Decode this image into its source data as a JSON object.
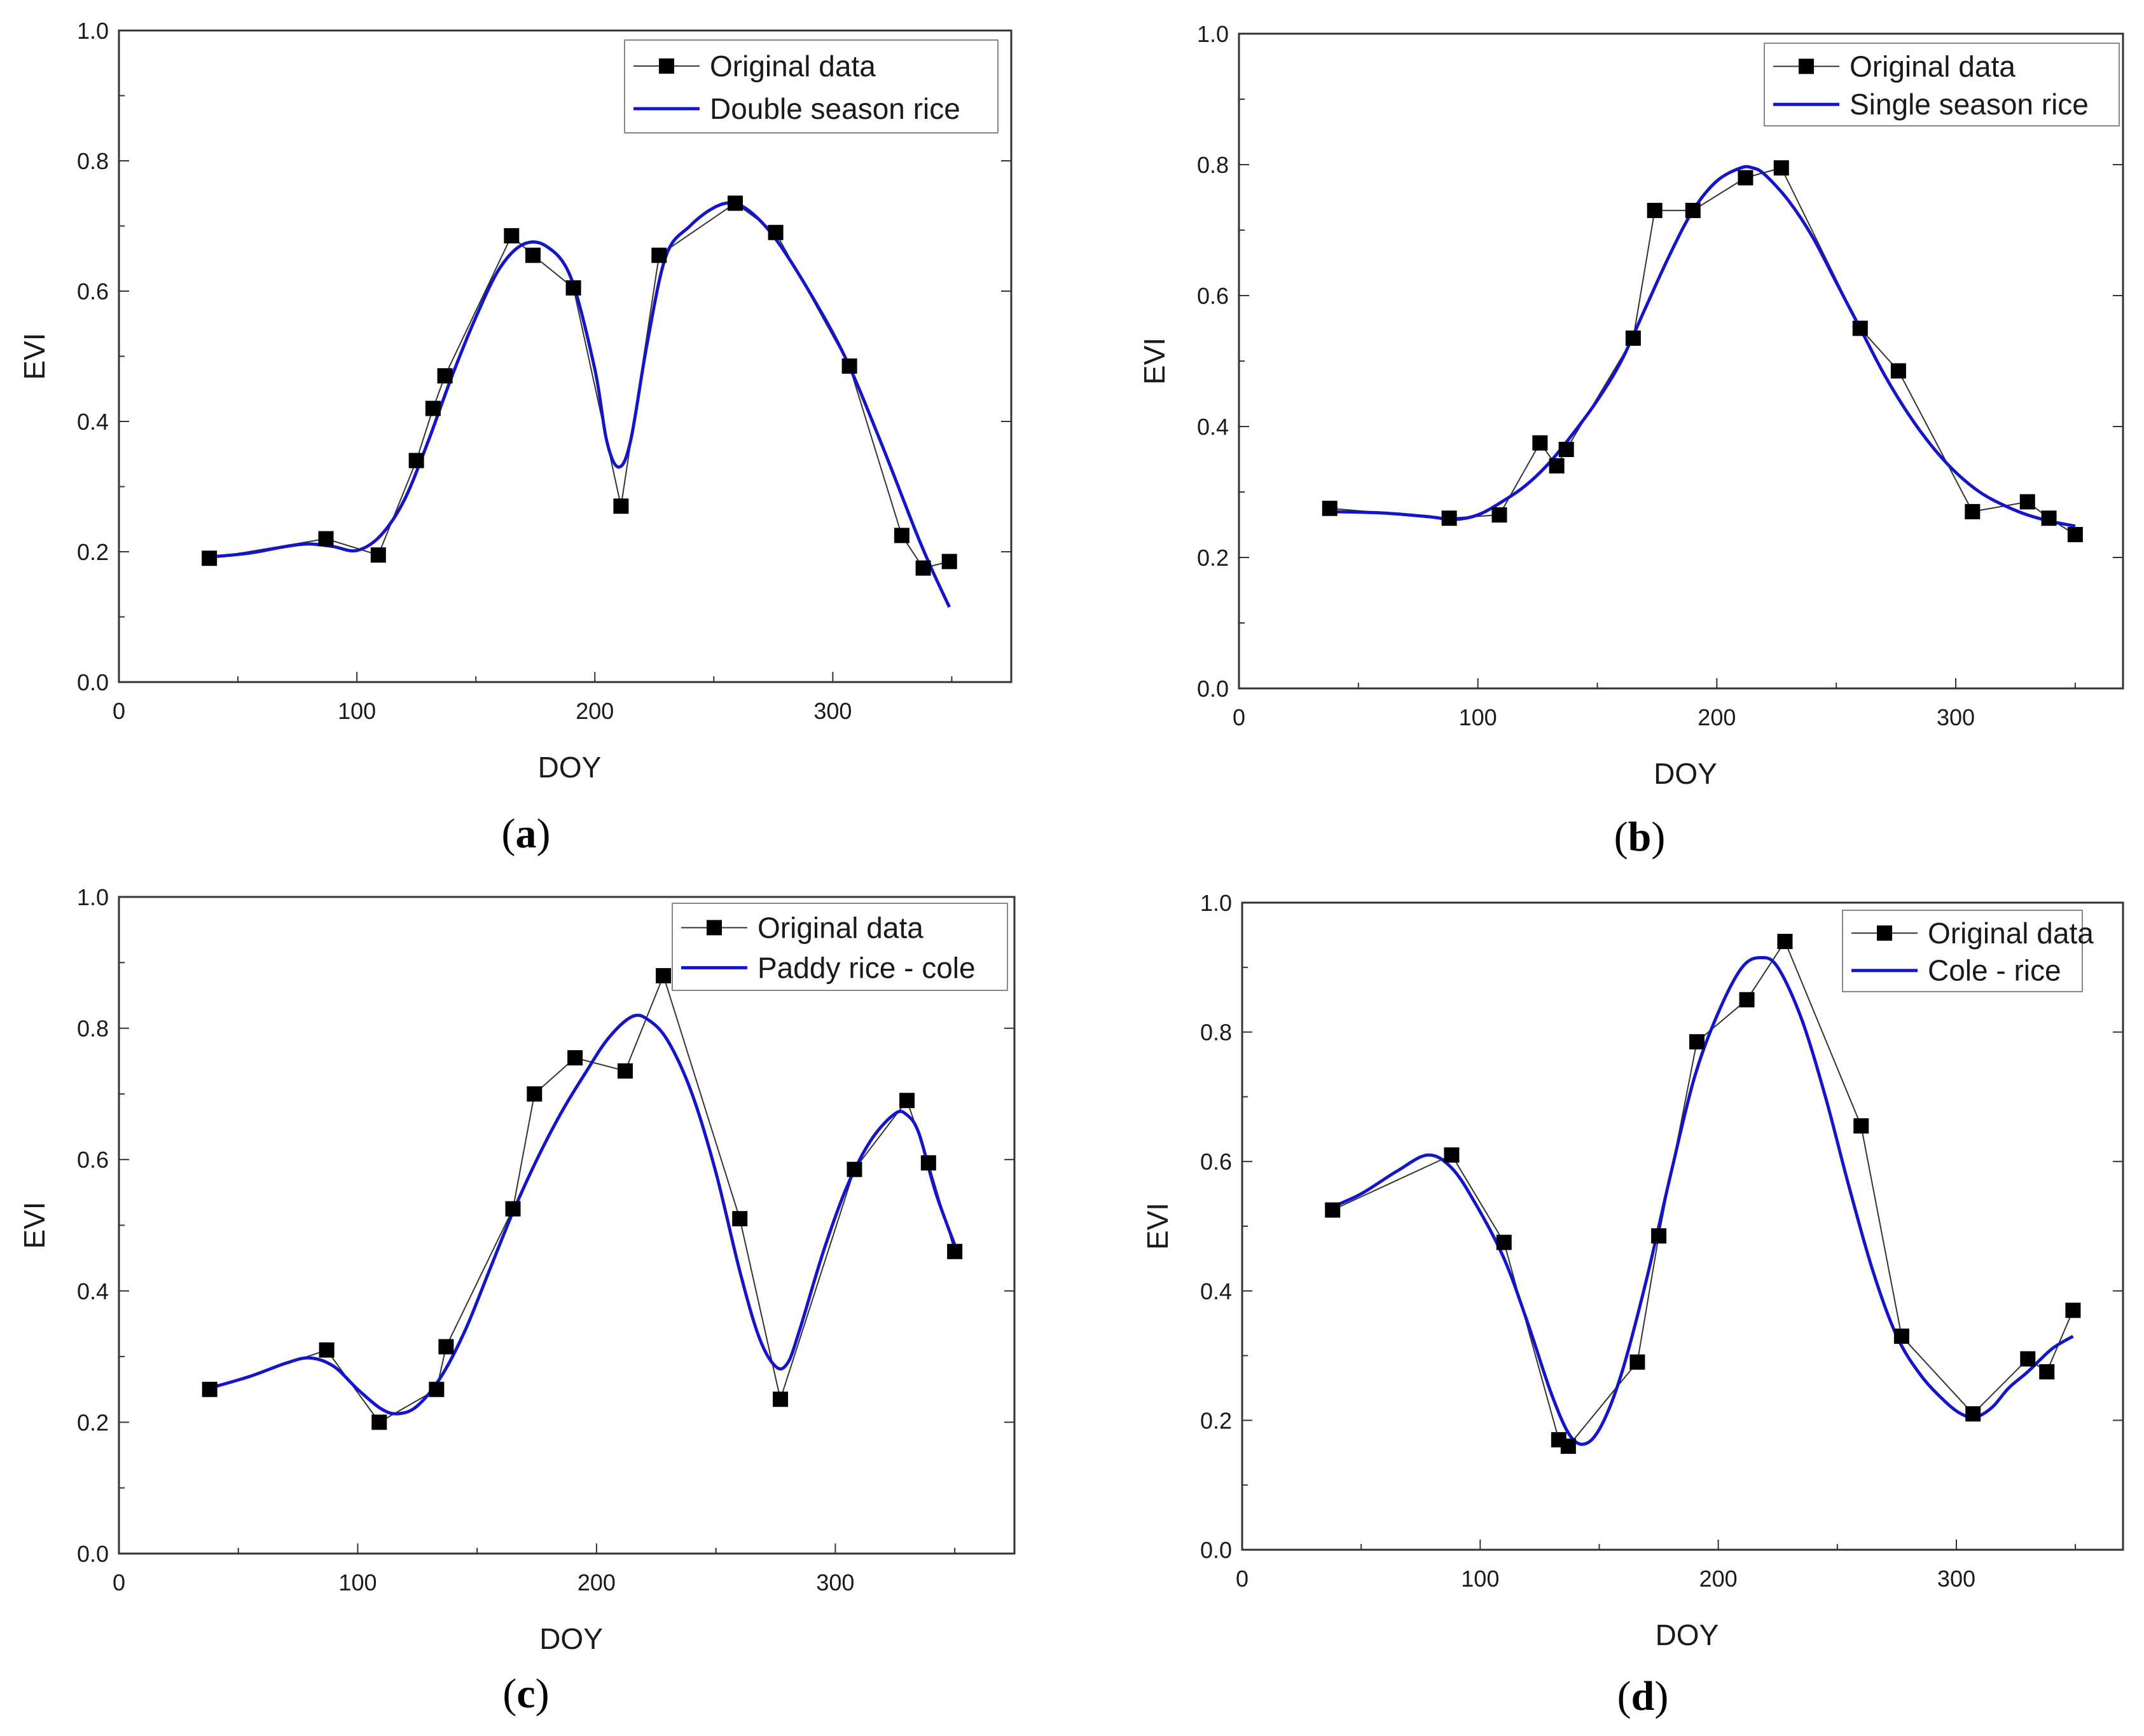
{
  "figure_title": "",
  "colors": {
    "fit_line": "#1414c8",
    "original_line": "#333333",
    "marker": "#000000",
    "axis": "#333333",
    "legend_border": "#888888"
  },
  "chart_data": [
    {
      "type": "line",
      "panel": "a",
      "panel_letter": "a",
      "xlabel": "DOY",
      "ylabel": "EVI",
      "xlim": [
        0,
        375
      ],
      "ylim": [
        0,
        1
      ],
      "xticks": [
        "0",
        "100",
        "200",
        "300"
      ],
      "yticks": [
        "0.0",
        "0.2",
        "0.4",
        "0.6",
        "0.8",
        "1.0"
      ],
      "legend_position": "top-right",
      "series": [
        {
          "name": "Original data",
          "style": "line-with-square-markers",
          "x": [
            38,
            87,
            109,
            125,
            132,
            137,
            165,
            174,
            191,
            211,
            227,
            259,
            276,
            307,
            329,
            338,
            349
          ],
          "y": [
            0.19,
            0.22,
            0.195,
            0.34,
            0.42,
            0.47,
            0.685,
            0.655,
            0.605,
            0.27,
            0.655,
            0.735,
            0.69,
            0.485,
            0.225,
            0.175,
            0.185
          ]
        },
        {
          "name": "Double season rice",
          "style": "smooth-line",
          "x": [
            38,
            55,
            70,
            80,
            90,
            100,
            110,
            120,
            130,
            140,
            150,
            160,
            170,
            180,
            190,
            200,
            205,
            210,
            215,
            222,
            230,
            240,
            250,
            258,
            266,
            276,
            290,
            305,
            320,
            335,
            342,
            349
          ],
          "y": [
            0.192,
            0.198,
            0.208,
            0.212,
            0.208,
            0.202,
            0.225,
            0.28,
            0.37,
            0.47,
            0.56,
            0.635,
            0.672,
            0.668,
            0.62,
            0.48,
            0.37,
            0.33,
            0.37,
            0.52,
            0.655,
            0.7,
            0.728,
            0.735,
            0.72,
            0.68,
            0.6,
            0.5,
            0.37,
            0.23,
            0.17,
            0.115
          ]
        }
      ]
    },
    {
      "type": "line",
      "panel": "b",
      "panel_letter": "b",
      "xlabel": "DOY",
      "ylabel": "EVI",
      "xlim": [
        0,
        370
      ],
      "ylim": [
        0,
        1
      ],
      "xticks": [
        "0",
        "100",
        "200",
        "300"
      ],
      "yticks": [
        "0.0",
        "0.2",
        "0.4",
        "0.6",
        "0.8",
        "1.0"
      ],
      "legend_position": "top-right",
      "series": [
        {
          "name": "Original data",
          "style": "line-with-square-markers",
          "x": [
            38,
            88,
            109,
            126,
            133,
            137,
            165,
            174,
            190,
            212,
            227,
            260,
            276,
            307,
            330,
            339,
            350
          ],
          "y": [
            0.275,
            0.26,
            0.265,
            0.375,
            0.34,
            0.365,
            0.535,
            0.73,
            0.73,
            0.78,
            0.795,
            0.55,
            0.485,
            0.27,
            0.285,
            0.26,
            0.235
          ]
        },
        {
          "name": "Single season rice",
          "style": "smooth-line",
          "x": [
            38,
            60,
            80,
            90,
            100,
            110,
            120,
            130,
            140,
            150,
            160,
            170,
            180,
            190,
            200,
            210,
            215,
            220,
            230,
            240,
            250,
            260,
            270,
            280,
            290,
            300,
            310,
            320,
            330,
            340,
            350
          ],
          "y": [
            0.27,
            0.268,
            0.262,
            0.258,
            0.265,
            0.285,
            0.31,
            0.345,
            0.39,
            0.44,
            0.5,
            0.58,
            0.66,
            0.73,
            0.775,
            0.795,
            0.795,
            0.785,
            0.745,
            0.69,
            0.62,
            0.55,
            0.48,
            0.42,
            0.37,
            0.33,
            0.3,
            0.28,
            0.265,
            0.255,
            0.248
          ]
        }
      ]
    },
    {
      "type": "line",
      "panel": "c",
      "panel_letter": "c",
      "xlabel": "DOY",
      "ylabel": "EVI",
      "xlim": [
        0,
        375
      ],
      "ylim": [
        0,
        1
      ],
      "xticks": [
        "0",
        "100",
        "200",
        "300"
      ],
      "yticks": [
        "0.0",
        "0.2",
        "0.4",
        "0.6",
        "0.8",
        "1.0"
      ],
      "legend_position": "top-right",
      "series": [
        {
          "name": "Original data",
          "style": "line-with-square-markers",
          "x": [
            38,
            87,
            109,
            133,
            137,
            165,
            174,
            191,
            212,
            228,
            260,
            277,
            308,
            330,
            339,
            350
          ],
          "y": [
            0.25,
            0.31,
            0.2,
            0.25,
            0.315,
            0.525,
            0.7,
            0.755,
            0.735,
            0.88,
            0.51,
            0.235,
            0.585,
            0.69,
            0.595,
            0.46
          ]
        },
        {
          "name": "Paddy rice - cole",
          "style": "smooth-line",
          "x": [
            38,
            55,
            70,
            80,
            90,
            100,
            110,
            117,
            125,
            135,
            145,
            155,
            165,
            175,
            185,
            195,
            205,
            215,
            222,
            230,
            240,
            250,
            260,
            268,
            275,
            280,
            285,
            295,
            305,
            315,
            325,
            330,
            335,
            342,
            350
          ],
          "y": [
            0.252,
            0.27,
            0.29,
            0.298,
            0.285,
            0.25,
            0.22,
            0.213,
            0.225,
            0.27,
            0.34,
            0.43,
            0.52,
            0.6,
            0.67,
            0.73,
            0.785,
            0.818,
            0.812,
            0.78,
            0.7,
            0.58,
            0.43,
            0.33,
            0.285,
            0.29,
            0.34,
            0.46,
            0.56,
            0.63,
            0.67,
            0.668,
            0.64,
            0.55,
            0.47
          ]
        }
      ]
    },
    {
      "type": "line",
      "panel": "d",
      "panel_letter": "d",
      "xlabel": "DOY",
      "ylabel": "EVI",
      "xlim": [
        0,
        370
      ],
      "ylim": [
        0,
        1
      ],
      "xticks": [
        "0",
        "100",
        "200",
        "300"
      ],
      "yticks": [
        "0.0",
        "0.2",
        "0.4",
        "0.6",
        "0.8",
        "1.0"
      ],
      "legend_position": "top-right",
      "series": [
        {
          "name": "Original data",
          "style": "line-with-square-markers",
          "x": [
            38,
            88,
            110,
            133,
            137,
            166,
            175,
            191,
            212,
            228,
            260,
            277,
            307,
            330,
            338,
            349
          ],
          "y": [
            0.525,
            0.61,
            0.475,
            0.17,
            0.16,
            0.29,
            0.485,
            0.785,
            0.85,
            0.94,
            0.655,
            0.33,
            0.21,
            0.295,
            0.275,
            0.37
          ]
        },
        {
          "name": "Cole - rice",
          "style": "smooth-line",
          "x": [
            38,
            50,
            65,
            78,
            88,
            98,
            110,
            120,
            130,
            138,
            145,
            152,
            160,
            170,
            180,
            190,
            200,
            210,
            218,
            225,
            235,
            245,
            255,
            265,
            275,
            285,
            295,
            302,
            308,
            315,
            322,
            330,
            340,
            349
          ],
          "y": [
            0.53,
            0.55,
            0.585,
            0.61,
            0.59,
            0.535,
            0.45,
            0.35,
            0.24,
            0.175,
            0.165,
            0.2,
            0.28,
            0.42,
            0.58,
            0.73,
            0.83,
            0.9,
            0.915,
            0.9,
            0.82,
            0.7,
            0.56,
            0.43,
            0.33,
            0.27,
            0.23,
            0.21,
            0.205,
            0.22,
            0.25,
            0.275,
            0.31,
            0.33
          ]
        }
      ]
    }
  ]
}
